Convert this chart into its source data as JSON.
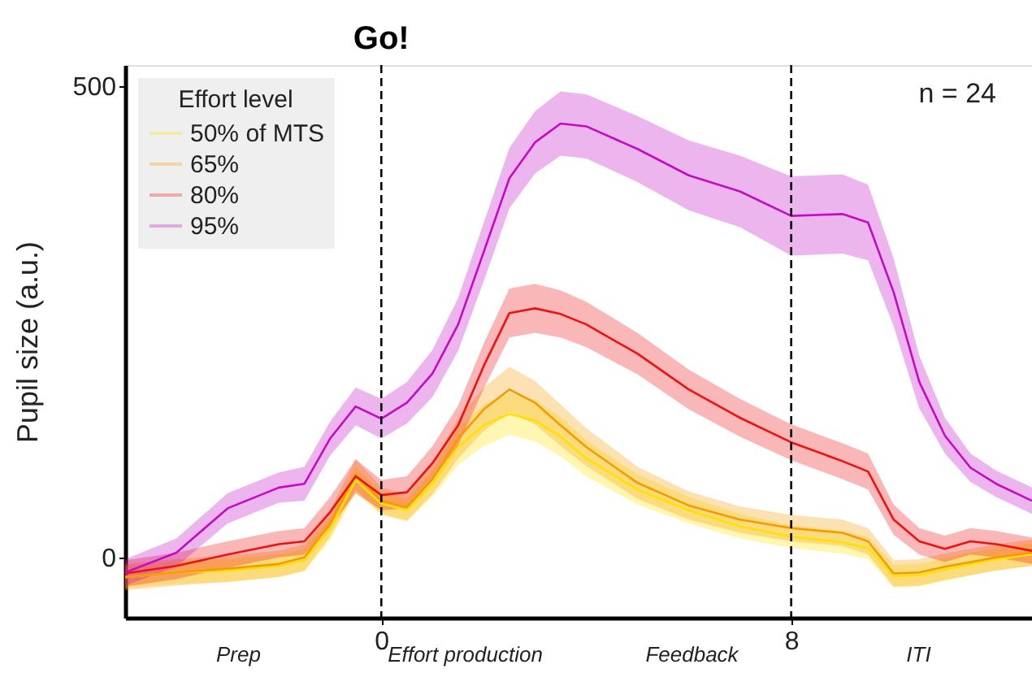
{
  "chart_data": {
    "type": "line",
    "ylabel": "Pupil size (a.u.)",
    "legend_title": "Effort level",
    "x": [
      -5,
      -4,
      -3,
      -2,
      -1.5,
      -1,
      -0.5,
      0,
      0.5,
      1,
      1.5,
      2,
      2.5,
      3,
      3.5,
      4,
      5,
      6,
      7,
      8,
      9,
      9.5,
      10,
      10.5,
      11,
      11.5,
      12,
      12.7
    ],
    "series": [
      {
        "name": "50% of MTS",
        "color": "#ffe100",
        "values": [
          -21,
          -16,
          -14,
          -9,
          -3,
          30,
          82,
          57,
          50,
          78,
          117,
          140,
          152,
          145,
          128,
          105,
          72,
          50,
          33,
          22,
          16,
          10,
          -20,
          -19,
          -13,
          -7,
          -2,
          3
        ],
        "lower": [
          -33,
          -28,
          -26,
          -21,
          -15,
          18,
          68,
          45,
          38,
          64,
          98,
          118,
          130,
          123,
          107,
          86,
          56,
          36,
          20,
          10,
          4,
          -2,
          -32,
          -31,
          -25,
          -19,
          -14,
          -9
        ],
        "upper": [
          -9,
          -4,
          -2,
          3,
          9,
          42,
          96,
          69,
          62,
          92,
          136,
          162,
          174,
          167,
          149,
          124,
          88,
          64,
          46,
          34,
          28,
          22,
          -8,
          -7,
          -1,
          5,
          10,
          15
        ]
      },
      {
        "name": "65%",
        "color": "#f59b00",
        "values": [
          -21,
          -16,
          -12,
          -7,
          0,
          36,
          88,
          60,
          53,
          83,
          126,
          157,
          178,
          164,
          140,
          117,
          79,
          55,
          40,
          31,
          26,
          17,
          -17,
          -16,
          -10,
          -5,
          0,
          5
        ],
        "lower": [
          -35,
          -30,
          -26,
          -21,
          -14,
          22,
          72,
          46,
          39,
          67,
          105,
          134,
          154,
          141,
          118,
          97,
          62,
          40,
          26,
          17,
          12,
          3,
          -31,
          -30,
          -24,
          -19,
          -14,
          -9
        ],
        "upper": [
          -7,
          -2,
          2,
          7,
          14,
          50,
          104,
          74,
          67,
          99,
          147,
          180,
          202,
          187,
          162,
          137,
          96,
          70,
          54,
          45,
          40,
          31,
          -3,
          -2,
          4,
          9,
          14,
          19
        ]
      },
      {
        "name": "80%",
        "color": "#ee1111",
        "values": [
          -17,
          -9,
          3,
          14,
          17,
          48,
          86,
          66,
          69,
          100,
          140,
          203,
          259,
          264,
          258,
          247,
          216,
          178,
          148,
          122,
          102,
          91,
          40,
          17,
          9,
          17,
          14,
          7
        ],
        "lower": [
          -31,
          -23,
          -11,
          0,
          3,
          32,
          68,
          50,
          52,
          82,
          119,
          179,
          233,
          238,
          233,
          223,
          194,
          157,
          128,
          103,
          83,
          72,
          24,
          3,
          -5,
          3,
          0,
          -7
        ],
        "upper": [
          -3,
          5,
          17,
          28,
          31,
          64,
          104,
          82,
          86,
          118,
          161,
          227,
          285,
          290,
          283,
          271,
          238,
          199,
          168,
          141,
          121,
          110,
          56,
          31,
          23,
          31,
          28,
          21
        ]
      },
      {
        "name": "95%",
        "color": "#c40bc4",
        "values": [
          -16,
          5,
          52,
          74,
          78,
          126,
          160,
          147,
          164,
          195,
          247,
          324,
          402,
          440,
          460,
          457,
          433,
          405,
          388,
          362,
          364,
          355,
          281,
          186,
          129,
          95,
          78,
          60
        ],
        "lower": [
          -30,
          -10,
          36,
          58,
          60,
          108,
          140,
          126,
          142,
          170,
          219,
          293,
          370,
          407,
          426,
          423,
          398,
          368,
          350,
          320,
          322,
          315,
          245,
          158,
          110,
          80,
          64,
          46
        ],
        "upper": [
          -2,
          20,
          68,
          90,
          96,
          144,
          180,
          168,
          186,
          220,
          275,
          355,
          434,
          473,
          494,
          491,
          468,
          442,
          426,
          404,
          406,
          395,
          317,
          214,
          148,
          110,
          92,
          74
        ]
      }
    ],
    "xlim": [
      -5,
      12.7
    ],
    "xticks": [
      0,
      8
    ],
    "ylim": [
      -64,
      522
    ],
    "yticks": [
      0,
      500
    ],
    "ref_lines": [
      {
        "axis": "x",
        "value": 0,
        "label": "Go!",
        "line_style": "dashed"
      },
      {
        "axis": "x",
        "value": 8,
        "line_style": "dashed"
      }
    ],
    "annotations": [
      "n = 24",
      "Prep",
      "Effort production",
      "Feedback",
      "ITI"
    ],
    "legend": "top left",
    "grid": false,
    "marker": "none",
    "line_style": "solid"
  }
}
